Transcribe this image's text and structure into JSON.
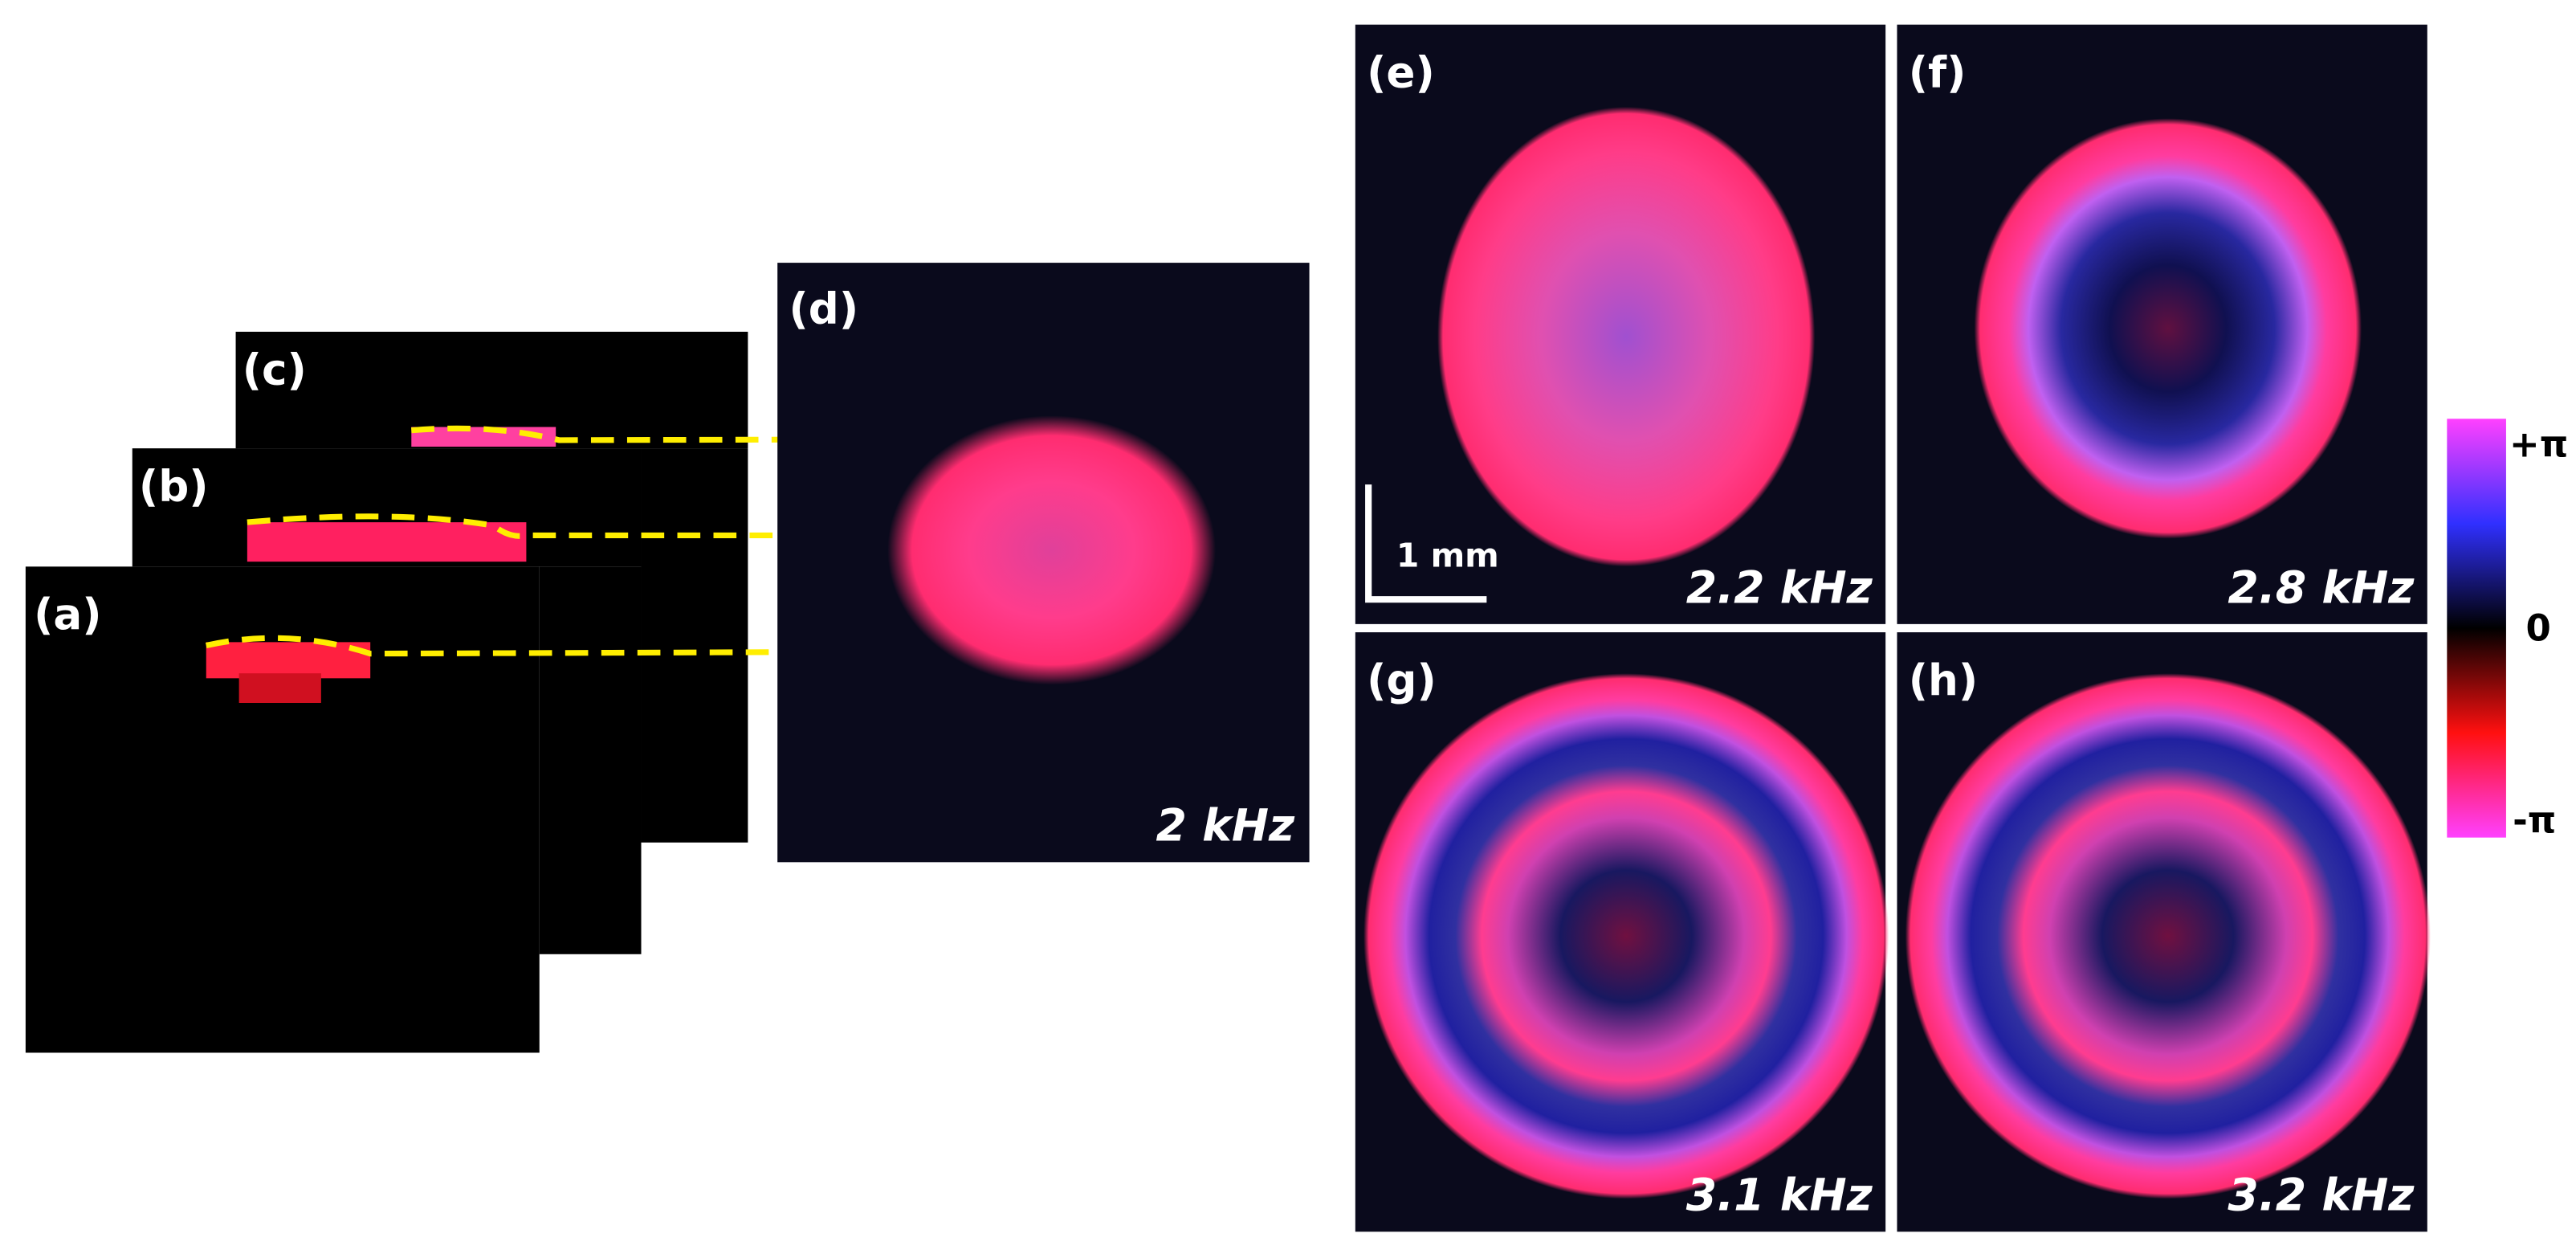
{
  "panels": [
    {
      "label": "(a)"
    },
    {
      "label": "(b)"
    },
    {
      "label": "(c)"
    },
    {
      "label": "(d)",
      "frequency": "2 kHz"
    },
    {
      "label": "(e)",
      "frequency": "2.2 kHz"
    },
    {
      "label": "(f)",
      "frequency": "2.8 kHz"
    },
    {
      "label": "(g)",
      "frequency": "3.1 kHz"
    },
    {
      "label": "(h)",
      "frequency": "3.2 kHz"
    }
  ],
  "scale_bar": "1 mm",
  "colorbar": {
    "top": "+π",
    "middle": "0",
    "bottom": "-π"
  }
}
